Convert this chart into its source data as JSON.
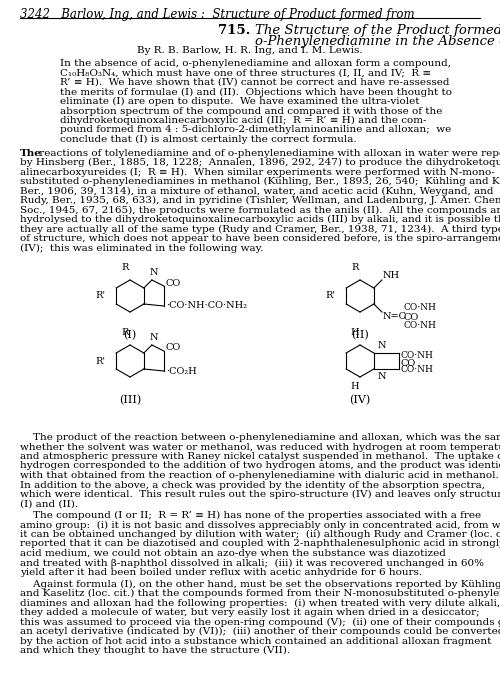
{
  "header": "3242   Barlow, Ing, and Lewis :  Structure of Product formed from",
  "title_number": "715.",
  "title_text": "The Structure of the Product formed from Alloxan and\no-Phenylenediamine in the Absence of Acid.",
  "authors": "By R. B. Barlow, H. R. Ing, and I. M. Lewis.",
  "abstract": "In the absence of acid, o-phenylenediamine and alloxan form a compound,\nC₁₀H₈O₃N₄, which must have one of three structures (I, II, and IV;  R ≡\nR’ ≡ H).  We have shown that (IV) cannot be correct and have re-assessed\nthe merits of formulae (I) and (II).  Objections which have been thought to\neliminate (I) are open to dispute.  We have examined the ultra-violet\nabsorption spectrum of the compound and compared it with those of the\ndihydroketoquinoxalinecarboxylic acid (III;  R = R’ ≡ H) and the com-\npound formed from 4 : 5-dichloro-2-dimethylaminoaniline and alloxan;  we\nconclude that (I) is almost certainly the correct formula.",
  "body1": "The reactions of tolylenediamine and of o-phenylenediamine with alloxan in water were reported\nby Hinsberg (Ber., 1885, 18, 1228;  Annalen, 1896, 292, 247) to produce the dihydroketoquinox-\nalinecarboxyureides (I;  R ≡ H).  When similar experiments were performed with N-mono-\nsubstituted o-phenylenediamines in methanol (Kühling, Ber., 1893, 26, 540;  Kühling and Kaselitz,\nBer., 1906, 39, 1314), in a mixture of ethanol, water, and acetic acid (Kuhn, Weygand, and\nRudy, Ber., 1935, 68, 633), and in pyridine (Tishler, Wellman, and Ladenburg, J. Amer. Chem.\nSoc., 1945, 67, 2165), the products were formulated as the anils (II).  All the compounds are easily\nhydrolysed to the dihydroketoquinoxalinecarboxylic acids (III) by alkali, and it is possible that\nthey are actually all of the same type (Rudy and Cramer, Ber., 1938, 71, 1234).  A third type\nof structure, which does not appear to have been considered before, is the spiro-arrangement\n(IV);  this was eliminated in the following way.",
  "body2": "The product of the reaction between o-phenylenediamine and alloxan, which was the same\nwhether the solvent was water or methanol, was reduced with hydrogen at room temperature\nand atmospheric pressure with Raney nickel catalyst suspended in methanol.  The uptake of\nhydrogen corresponded to the addition of two hydrogen atoms, and the product was identical\nwith that obtained from the reaction of o-phenylenediamine with dialuric acid in methanol.\nIn addition to the above, a check was provided by the identity of the absorption spectra,\nwhich were identical.  This result rules out the spiro-structure (IV) and leaves only structures\n(I) and (II).",
  "body3": "The compound (I or II;  R = R’ ≡ H) has none of the properties associated with a free\namino group:  (i) it is not basic and dissolves appreciably only in concentrated acid, from which\nit can be obtained unchanged by dilution with water;  (ii) although Rudy and Cramer (loc. cit.)\nreported that it can be diazotised and coupled with 2-naphthalenesulphonic acid in strongacid medium, we could not obtain an azo-dye when the substance was diazotized\nand treated with β-naphthol dissolved in alkali;  (iii) it was recovered unchanged in 60%\nyield after it had been boiled under reflux with acetic anhydride for 6 hours.",
  "body4": "Against formula (I), on the other hand, must be set the observations reported by Kühling\nand Kaselitz (loc. cit.) that the compounds formed from their N-monosubstituted o-phenylene-\ndiamines and alloxan had the following properties:  (i) when treated with very dilute alkali,\nthey added a molecule of water, but very easily lost it again when dried in a desiccator;\nthis was assumed to proceed via the open-ring compound (V);  (ii) one of their compounds gave\nan acetyl derivative (indicated by (VI));  (iii) another of their compounds could be converted\nby the action of hot acid into a substance which contained an additional alloxan fragment\nand which they thought to have the structure (VII).",
  "background_color": "#ffffff"
}
